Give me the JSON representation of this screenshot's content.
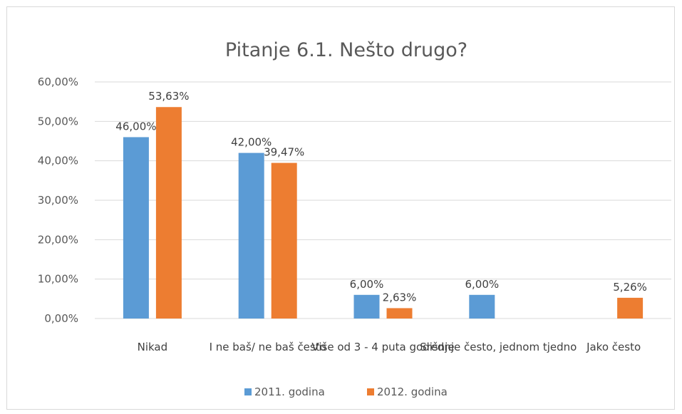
{
  "chart_data": {
    "type": "bar",
    "title": "Pitanje 6.1. Nešto drugo?",
    "categories": [
      "Nikad",
      "I ne baš/ ne baš često",
      "Više od 3 - 4 puta godišnje",
      "Srednje često, jednom tjedno",
      "Jako često"
    ],
    "series": [
      {
        "name": "2011. godina",
        "color": "#5b9bd5",
        "values": [
          46.0,
          42.0,
          6.0,
          6.0,
          null
        ],
        "labels": [
          "46,00%",
          "42,00%",
          "6,00%",
          "6,00%",
          ""
        ]
      },
      {
        "name": "2012. godina",
        "color": "#ed7d31",
        "values": [
          53.63,
          39.47,
          2.63,
          null,
          5.26
        ],
        "labels": [
          "53,63%",
          "39,47%",
          "2,63%",
          "",
          "5,26%"
        ]
      }
    ],
    "yticks": [
      "0,00%",
      "10,00%",
      "20,00%",
      "30,00%",
      "40,00%",
      "50,00%",
      "60,00%"
    ],
    "ylim": [
      0,
      60
    ],
    "grid": true,
    "legend_position": "bottom"
  }
}
